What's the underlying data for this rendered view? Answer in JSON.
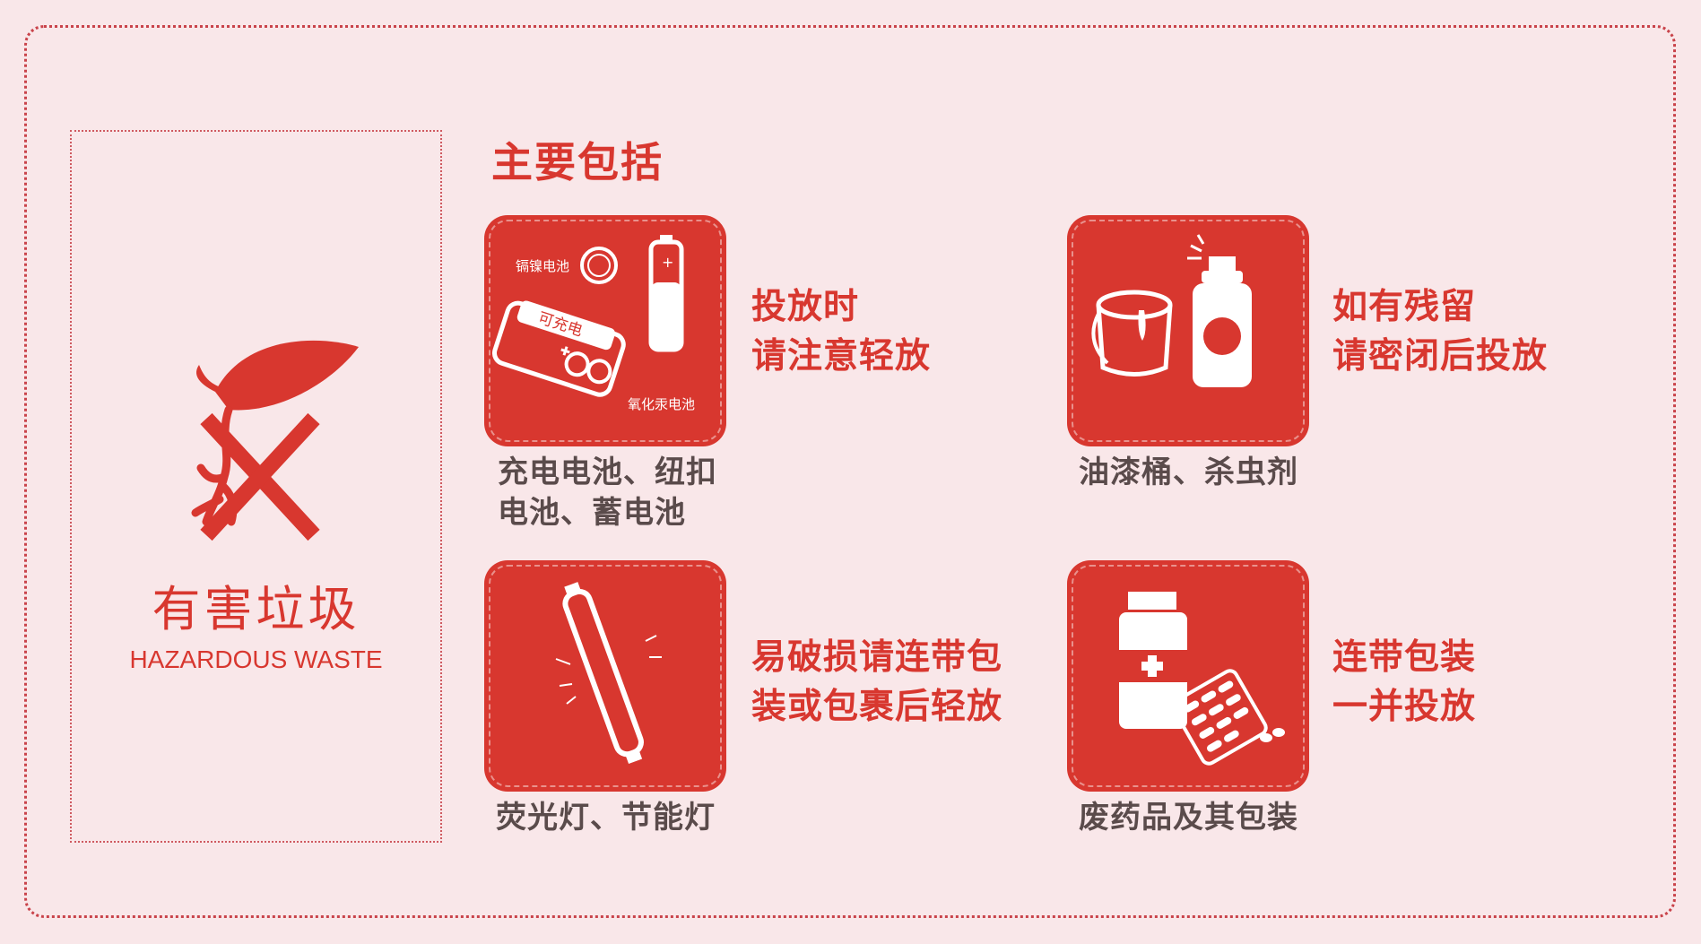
{
  "category": {
    "name_cn": "有害垃圾",
    "name_en": "HAZARDOUS WASTE"
  },
  "section_title": "主要包括",
  "items": [
    {
      "caption_line1": "充电电池、纽扣",
      "caption_line2": "电池、蓄电池",
      "tip_line1": "投放时",
      "tip_line2": "请注意轻放",
      "icon_labels": {
        "button_cell": "镉镍电池",
        "rechargeable": "可充电",
        "mercury": "氧化汞电池"
      }
    },
    {
      "caption_line1": "油漆桶、杀虫剂",
      "tip_line1": "如有残留",
      "tip_line2": "请密闭后投放"
    },
    {
      "caption_line1": "荧光灯、节能灯",
      "tip_line1": "易破损请连带包",
      "tip_line2": "装或包裹后轻放"
    },
    {
      "caption_line1": "废药品及其包装",
      "tip_line1": "连带包装",
      "tip_line2": "一并投放"
    }
  ],
  "colors": {
    "accent": "#d8372f",
    "background": "#f9e7e9",
    "caption_text": "#5a4b4b"
  }
}
